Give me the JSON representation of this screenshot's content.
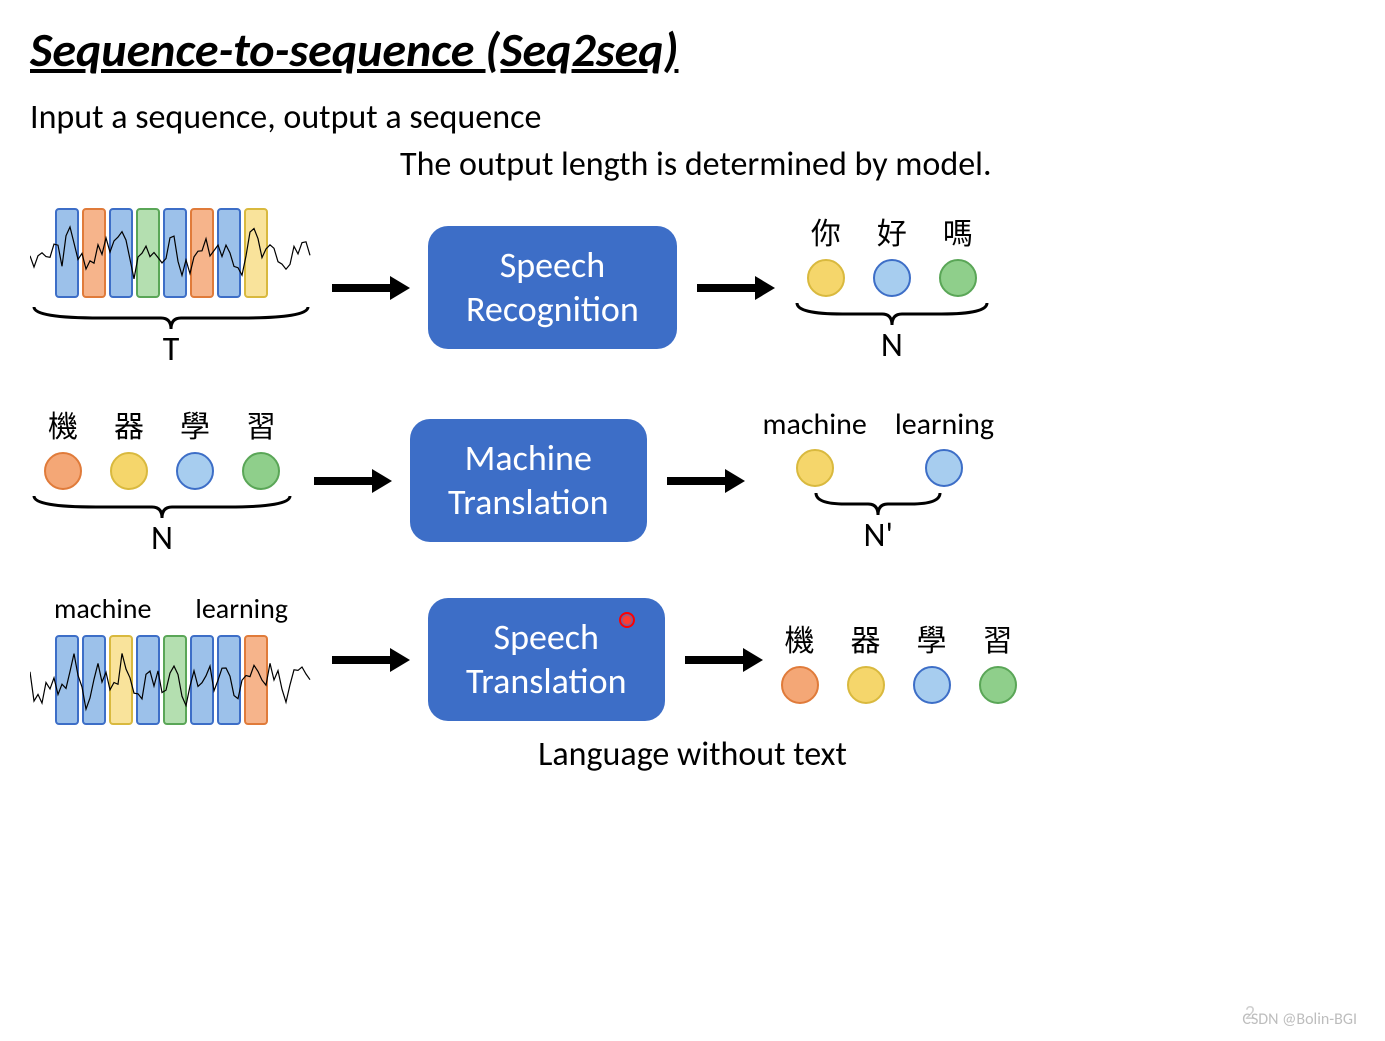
{
  "title": "Sequence-to-sequence (Seq2seq)",
  "subtitle": "Input a sequence, output a sequence",
  "subtitle2": "The output length is determined by model.",
  "colors": {
    "model_box_bg": "#3d6ec7",
    "model_box_text": "#ffffff",
    "arrow": "#000000",
    "text": "#000000",
    "brace": "#000000",
    "pointer": "#ff3b2f",
    "wave_line": "#000000",
    "bar_blue_fill": "#9cc1ea",
    "bar_blue_stroke": "#3d6ec7",
    "bar_orange_fill": "#f6b48b",
    "bar_orange_stroke": "#e07b3a",
    "bar_green_fill": "#b4dfb0",
    "bar_green_stroke": "#5aa657",
    "bar_yellow_fill": "#f9e39b",
    "bar_yellow_stroke": "#d9b93e",
    "circ_orange_fill": "#f4a776",
    "circ_orange_stroke": "#e07b3a",
    "circ_yellow_fill": "#f5d66b",
    "circ_yellow_stroke": "#d9b93e",
    "circ_blue_fill": "#a7cdef",
    "circ_blue_stroke": "#3d6ec7",
    "circ_green_fill": "#8fcf8b",
    "circ_green_stroke": "#5aa657"
  },
  "typography": {
    "title_fontsize": 48,
    "title_weight": "bold",
    "title_style": "italic",
    "body_fontsize": 34,
    "model_fontsize": 36,
    "token_label_fontsize": 30,
    "brace_fontsize": 34
  },
  "arrow": {
    "width": 80,
    "height": 30,
    "stroke_width": 8
  },
  "rows": [
    {
      "model_label_line1": "Speech",
      "model_label_line2": "Recognition",
      "input": {
        "type": "waveform-bars",
        "bars": [
          "blue",
          "orange",
          "blue",
          "green",
          "blue",
          "orange",
          "blue",
          "yellow"
        ],
        "brace_label": "T",
        "top_labels": []
      },
      "output": {
        "type": "tokens",
        "tokens": [
          {
            "label": "你",
            "color": "yellow"
          },
          {
            "label": "好",
            "color": "blue"
          },
          {
            "label": "嗎",
            "color": "green"
          }
        ],
        "brace_label": "N"
      },
      "pointer": false
    },
    {
      "model_label_line1": "Machine",
      "model_label_line2": "Translation",
      "input": {
        "type": "tokens",
        "tokens": [
          {
            "label": "機",
            "color": "orange"
          },
          {
            "label": "器",
            "color": "yellow"
          },
          {
            "label": "學",
            "color": "blue"
          },
          {
            "label": "習",
            "color": "green"
          }
        ],
        "brace_label": "N"
      },
      "output": {
        "type": "tokens",
        "tokens": [
          {
            "label": "machine",
            "color": "yellow"
          },
          {
            "label": "learning",
            "color": "blue"
          }
        ],
        "brace_label": "N'"
      },
      "pointer": false
    },
    {
      "model_label_line1": "Speech",
      "model_label_line2": "Translation",
      "input": {
        "type": "waveform-bars",
        "bars": [
          "blue",
          "blue",
          "yellow",
          "blue",
          "green",
          "blue",
          "blue",
          "orange"
        ],
        "brace_label": "",
        "top_labels": [
          "machine",
          "learning"
        ]
      },
      "output": {
        "type": "tokens",
        "tokens": [
          {
            "label": "機",
            "color": "orange"
          },
          {
            "label": "器",
            "color": "yellow"
          },
          {
            "label": "學",
            "color": "blue"
          },
          {
            "label": "習",
            "color": "green"
          }
        ],
        "brace_label": ""
      },
      "pointer": true,
      "footer_text": "Language without text"
    }
  ],
  "watermark": "CSDN @Bolin-BGI",
  "page_number": "2"
}
